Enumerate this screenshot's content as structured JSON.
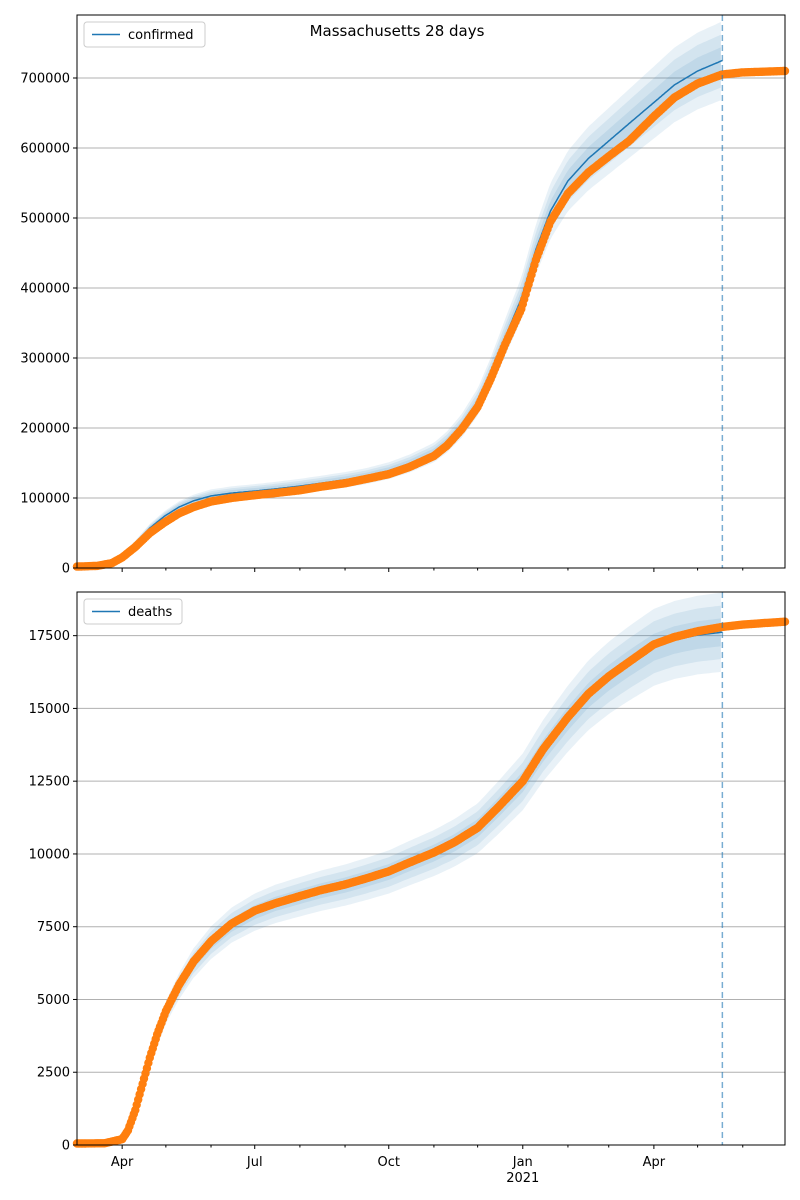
{
  "figure": {
    "title": "Massachusetts 28 days"
  },
  "colors": {
    "model": "#1f77b4",
    "observed": "#ff7f0e",
    "band": "#1f77b4",
    "grid": "#b0b0b0",
    "forecast_line": "#1f77b4"
  },
  "chart_data": [
    {
      "type": "line",
      "legend": {
        "label": "confirmed",
        "placement": "top-left"
      },
      "series": [
        {
          "name": "confirmed",
          "kind": "model"
        },
        {
          "kind": "observed"
        }
      ],
      "xlim": [
        "2020-03-01",
        "2021-06-30"
      ],
      "ylim": [
        0,
        790000
      ],
      "grid": true,
      "yticks": [
        0,
        100000,
        200000,
        300000,
        400000,
        500000,
        600000,
        700000
      ],
      "ytick_labels": [
        "0",
        "100000",
        "200000",
        "300000",
        "400000",
        "500000",
        "600000",
        "700000"
      ],
      "forecast_date": "2021-05-18",
      "observed_points": [
        [
          "2020-03-01",
          2000
        ],
        [
          "2020-03-15",
          3000
        ],
        [
          "2020-03-25",
          7000
        ],
        [
          "2020-04-01",
          15000
        ],
        [
          "2020-04-10",
          30000
        ],
        [
          "2020-04-20",
          50000
        ],
        [
          "2020-04-30",
          65000
        ],
        [
          "2020-05-10",
          78000
        ],
        [
          "2020-05-20",
          87000
        ],
        [
          "2020-06-01",
          95000
        ],
        [
          "2020-06-15",
          100000
        ],
        [
          "2020-07-01",
          104000
        ],
        [
          "2020-07-15",
          107000
        ],
        [
          "2020-08-01",
          111000
        ],
        [
          "2020-08-15",
          116000
        ],
        [
          "2020-09-01",
          121000
        ],
        [
          "2020-09-15",
          127000
        ],
        [
          "2020-10-01",
          134000
        ],
        [
          "2020-10-15",
          144000
        ],
        [
          "2020-11-01",
          160000
        ],
        [
          "2020-11-10",
          175000
        ],
        [
          "2020-11-20",
          198000
        ],
        [
          "2020-12-01",
          230000
        ],
        [
          "2020-12-10",
          270000
        ],
        [
          "2020-12-20",
          320000
        ],
        [
          "2020-12-31",
          370000
        ],
        [
          "2021-01-10",
          440000
        ],
        [
          "2021-01-20",
          495000
        ],
        [
          "2021-02-01",
          535000
        ],
        [
          "2021-02-15",
          565000
        ],
        [
          "2021-03-01",
          588000
        ],
        [
          "2021-03-15",
          610000
        ],
        [
          "2021-04-01",
          645000
        ],
        [
          "2021-04-15",
          672000
        ],
        [
          "2021-05-01",
          692000
        ],
        [
          "2021-05-18",
          705000
        ],
        [
          "2021-06-01",
          708000
        ],
        [
          "2021-06-15",
          709000
        ],
        [
          "2021-06-30",
          710000
        ]
      ],
      "model_points": [
        [
          "2020-03-01",
          2000
        ],
        [
          "2020-03-15",
          3000
        ],
        [
          "2020-03-25",
          8000
        ],
        [
          "2020-04-01",
          17000
        ],
        [
          "2020-04-10",
          35000
        ],
        [
          "2020-04-20",
          57000
        ],
        [
          "2020-04-30",
          74000
        ],
        [
          "2020-05-10",
          87000
        ],
        [
          "2020-05-20",
          96000
        ],
        [
          "2020-06-01",
          103000
        ],
        [
          "2020-06-15",
          107000
        ],
        [
          "2020-07-01",
          110000
        ],
        [
          "2020-07-15",
          113000
        ],
        [
          "2020-08-01",
          117000
        ],
        [
          "2020-08-15",
          121000
        ],
        [
          "2020-09-01",
          126000
        ],
        [
          "2020-09-15",
          131000
        ],
        [
          "2020-10-01",
          139000
        ],
        [
          "2020-10-15",
          149000
        ],
        [
          "2020-11-01",
          165000
        ],
        [
          "2020-11-10",
          180000
        ],
        [
          "2020-11-20",
          203000
        ],
        [
          "2020-12-01",
          237000
        ],
        [
          "2020-12-10",
          278000
        ],
        [
          "2020-12-20",
          330000
        ],
        [
          "2020-12-31",
          385000
        ],
        [
          "2021-01-10",
          455000
        ],
        [
          "2021-01-20",
          510000
        ],
        [
          "2021-02-01",
          553000
        ],
        [
          "2021-02-15",
          585000
        ],
        [
          "2021-03-01",
          610000
        ],
        [
          "2021-03-15",
          635000
        ],
        [
          "2021-04-01",
          665000
        ],
        [
          "2021-04-15",
          690000
        ],
        [
          "2021-05-01",
          710000
        ],
        [
          "2021-05-18",
          725000
        ]
      ],
      "band_widths": [
        0.025,
        0.05,
        0.075
      ]
    },
    {
      "type": "line",
      "legend": {
        "label": "deaths",
        "placement": "top-left"
      },
      "series": [
        {
          "name": "deaths",
          "kind": "model"
        },
        {
          "kind": "observed"
        }
      ],
      "xlim": [
        "2020-03-01",
        "2021-06-30"
      ],
      "ylim": [
        0,
        19000
      ],
      "grid": true,
      "yticks": [
        0,
        2500,
        5000,
        7500,
        10000,
        12500,
        15000,
        17500
      ],
      "ytick_labels": [
        "0",
        "2500",
        "5000",
        "7500",
        "10000",
        "12500",
        "15000",
        "17500"
      ],
      "xticks": [
        "2020-04-01",
        "2020-07-01",
        "2020-10-01",
        "2021-01-01",
        "2021-04-01"
      ],
      "xtick_labels": [
        "Apr",
        "Jul",
        "Oct",
        "Jan",
        "Apr"
      ],
      "minor_xticks": [
        "2020-05-01",
        "2020-06-01",
        "2020-08-01",
        "2020-09-01",
        "2020-11-01",
        "2020-12-01",
        "2021-02-01",
        "2021-03-01",
        "2021-05-01",
        "2021-06-01"
      ],
      "year_label": {
        "text": "2021",
        "date": "2021-01-01"
      },
      "forecast_date": "2021-05-18",
      "observed_points": [
        [
          "2020-03-01",
          50
        ],
        [
          "2020-03-20",
          60
        ],
        [
          "2020-04-01",
          200
        ],
        [
          "2020-04-05",
          500
        ],
        [
          "2020-04-10",
          1200
        ],
        [
          "2020-04-15",
          2100
        ],
        [
          "2020-04-20",
          3000
        ],
        [
          "2020-04-25",
          3800
        ],
        [
          "2020-05-01",
          4600
        ],
        [
          "2020-05-10",
          5500
        ],
        [
          "2020-05-20",
          6300
        ],
        [
          "2020-06-01",
          7000
        ],
        [
          "2020-06-15",
          7600
        ],
        [
          "2020-07-01",
          8050
        ],
        [
          "2020-07-15",
          8300
        ],
        [
          "2020-08-01",
          8550
        ],
        [
          "2020-08-15",
          8750
        ],
        [
          "2020-09-01",
          8950
        ],
        [
          "2020-09-15",
          9150
        ],
        [
          "2020-10-01",
          9400
        ],
        [
          "2020-10-15",
          9700
        ],
        [
          "2020-11-01",
          10050
        ],
        [
          "2020-11-15",
          10400
        ],
        [
          "2020-12-01",
          10900
        ],
        [
          "2020-12-15",
          11600
        ],
        [
          "2021-01-01",
          12500
        ],
        [
          "2021-01-15",
          13600
        ],
        [
          "2021-02-01",
          14700
        ],
        [
          "2021-02-15",
          15500
        ],
        [
          "2021-03-01",
          16100
        ],
        [
          "2021-03-15",
          16600
        ],
        [
          "2021-04-01",
          17200
        ],
        [
          "2021-04-15",
          17450
        ],
        [
          "2021-05-01",
          17650
        ],
        [
          "2021-05-18",
          17800
        ],
        [
          "2021-06-01",
          17880
        ],
        [
          "2021-06-15",
          17930
        ],
        [
          "2021-06-30",
          17980
        ]
      ],
      "model_points": [
        [
          "2020-03-01",
          50
        ],
        [
          "2020-03-20",
          60
        ],
        [
          "2020-04-01",
          180
        ],
        [
          "2020-04-05",
          450
        ],
        [
          "2020-04-10",
          1100
        ],
        [
          "2020-04-15",
          2000
        ],
        [
          "2020-04-20",
          2900
        ],
        [
          "2020-04-25",
          3700
        ],
        [
          "2020-05-01",
          4550
        ],
        [
          "2020-05-10",
          5450
        ],
        [
          "2020-05-20",
          6250
        ],
        [
          "2020-06-01",
          6950
        ],
        [
          "2020-06-15",
          7550
        ],
        [
          "2020-07-01",
          8000
        ],
        [
          "2020-07-15",
          8280
        ],
        [
          "2020-08-01",
          8530
        ],
        [
          "2020-08-15",
          8730
        ],
        [
          "2020-09-01",
          8930
        ],
        [
          "2020-09-15",
          9130
        ],
        [
          "2020-10-01",
          9380
        ],
        [
          "2020-10-15",
          9680
        ],
        [
          "2020-11-01",
          10030
        ],
        [
          "2020-11-15",
          10380
        ],
        [
          "2020-12-01",
          10880
        ],
        [
          "2020-12-15",
          11580
        ],
        [
          "2021-01-01",
          12480
        ],
        [
          "2021-01-15",
          13550
        ],
        [
          "2021-02-01",
          14650
        ],
        [
          "2021-02-15",
          15450
        ],
        [
          "2021-03-01",
          16050
        ],
        [
          "2021-03-15",
          16550
        ],
        [
          "2021-04-01",
          17100
        ],
        [
          "2021-04-15",
          17350
        ],
        [
          "2021-05-01",
          17520
        ],
        [
          "2021-05-18",
          17620
        ]
      ],
      "band_widths": [
        0.025,
        0.05,
        0.075
      ]
    }
  ]
}
